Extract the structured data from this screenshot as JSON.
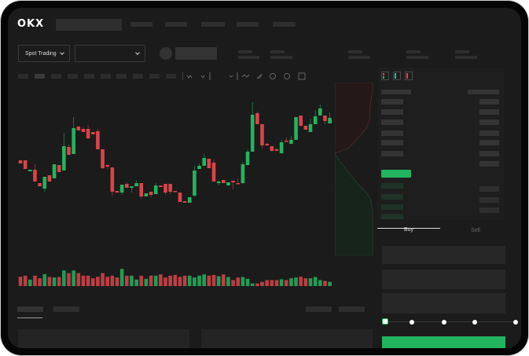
{
  "header": {
    "logo": "OKX"
  },
  "toolbar": {
    "market_type": "Spot Trading",
    "pair_selector": ""
  },
  "order_form": {
    "tabs": [
      {
        "label": "Buy",
        "active": true
      },
      {
        "label": "Sell",
        "active": false
      }
    ],
    "slider_percent": 0
  },
  "colors": {
    "up": "#22b45e",
    "down": "#d9444a",
    "background": "#1b1b1b",
    "buy_button": "#22b45e"
  },
  "chart_data": {
    "type": "candlestick",
    "note_fields": [
      "open",
      "close",
      "high",
      "low"
    ],
    "candles": [
      [
        67,
        63,
        67,
        63
      ],
      [
        67,
        56,
        67,
        56
      ],
      [
        53,
        55,
        55,
        53
      ],
      [
        55,
        40,
        62,
        40
      ],
      [
        38,
        34,
        38,
        34
      ],
      [
        31,
        46,
        46,
        27
      ],
      [
        48,
        40,
        48,
        40
      ],
      [
        44,
        62,
        62,
        44
      ],
      [
        61,
        52,
        61,
        52
      ],
      [
        54,
        85,
        102,
        54
      ],
      [
        84,
        74,
        87,
        74
      ],
      [
        75,
        108,
        122,
        75
      ],
      [
        110,
        105,
        110,
        105
      ],
      [
        107,
        103,
        109,
        103
      ],
      [
        107,
        95,
        112,
        94
      ],
      [
        103,
        100,
        103,
        100
      ],
      [
        104,
        81,
        107,
        81
      ],
      [
        81,
        57,
        81,
        56
      ],
      [
        61,
        59,
        61,
        56
      ],
      [
        58,
        27,
        58,
        22
      ],
      [
        28,
        26,
        28,
        26
      ],
      [
        26,
        36,
        36,
        23
      ],
      [
        37,
        32,
        39,
        32
      ],
      [
        32,
        34,
        34,
        26
      ],
      [
        34,
        38,
        41,
        34
      ],
      [
        38,
        21,
        38,
        18
      ],
      [
        21,
        25,
        25,
        21
      ],
      [
        27,
        23,
        27,
        20
      ],
      [
        24,
        35,
        38,
        24
      ],
      [
        35,
        33,
        35,
        33
      ],
      [
        37,
        26,
        37,
        23
      ],
      [
        37,
        27,
        37,
        24
      ],
      [
        28,
        27,
        28,
        27
      ],
      [
        26,
        14,
        26,
        14
      ],
      [
        15,
        13,
        15,
        13
      ],
      [
        13,
        20,
        20,
        13
      ],
      [
        22,
        54,
        60,
        21
      ],
      [
        56,
        60,
        63,
        56
      ],
      [
        60,
        70,
        75,
        60
      ],
      [
        69,
        57,
        69,
        57
      ],
      [
        64,
        40,
        68,
        40
      ],
      [
        38,
        40,
        42,
        35
      ],
      [
        42,
        38,
        42,
        38
      ],
      [
        35,
        39,
        39,
        35
      ],
      [
        41,
        39,
        41,
        30
      ],
      [
        38,
        37,
        44,
        37
      ],
      [
        38,
        62,
        65,
        37
      ],
      [
        61,
        78,
        81,
        61
      ],
      [
        78,
        125,
        141,
        78
      ],
      [
        127,
        113,
        129,
        113
      ],
      [
        113,
        86,
        113,
        82
      ],
      [
        88,
        86,
        89,
        85
      ],
      [
        85,
        79,
        85,
        78
      ],
      [
        81,
        79,
        83,
        79
      ],
      [
        76,
        90,
        93,
        76
      ],
      [
        92,
        91,
        96,
        91
      ],
      [
        88,
        93,
        98,
        88
      ],
      [
        93,
        122,
        122,
        93
      ],
      [
        124,
        111,
        124,
        110
      ],
      [
        111,
        106,
        111,
        106
      ],
      [
        103,
        113,
        120,
        103
      ],
      [
        113,
        123,
        131,
        113
      ],
      [
        124,
        133,
        138,
        124
      ],
      [
        124,
        117,
        124,
        113
      ],
      [
        114,
        121,
        128,
        114
      ]
    ],
    "volumes": [
      36,
      40,
      25,
      40,
      30,
      46,
      35,
      33,
      35,
      60,
      50,
      60,
      50,
      40,
      40,
      30,
      36,
      50,
      36,
      40,
      33,
      66,
      40,
      40,
      25,
      40,
      28,
      40,
      40,
      45,
      33,
      40,
      43,
      35,
      40,
      40,
      33,
      40,
      45,
      40,
      43,
      38,
      45,
      35,
      23,
      33,
      35,
      28,
      10,
      10,
      16,
      23,
      23,
      23,
      26,
      23,
      30,
      33,
      36,
      30,
      30,
      35,
      23,
      20,
      16
    ]
  }
}
